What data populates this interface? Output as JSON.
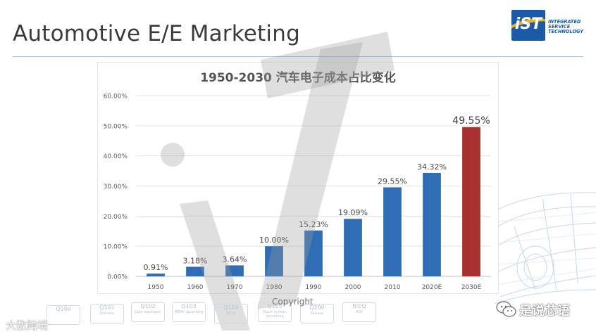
{
  "slide": {
    "title": "Automotive E/E Marketing"
  },
  "logo": {
    "mark": "iST",
    "lines": [
      "INTEGRATED",
      "SERVICE",
      "TECHNOLOGY"
    ]
  },
  "chart_data": {
    "type": "bar",
    "title": "1950-2030 汽车电子成本占比变化",
    "categories": [
      "1950",
      "1960",
      "1970",
      "1980",
      "1990",
      "2000",
      "2010",
      "2020E",
      "2030E"
    ],
    "values": [
      0.91,
      3.18,
      3.64,
      10.0,
      15.23,
      19.09,
      29.55,
      34.32,
      49.55
    ],
    "data_labels": [
      "0.91%",
      "3.18%",
      "3.64%",
      "10.00%",
      "15.23%",
      "19.09%",
      "29.55%",
      "34.32%",
      "49.55%"
    ],
    "ylim": [
      0,
      60
    ],
    "yticks": [
      0,
      10,
      20,
      30,
      40,
      50,
      60
    ],
    "ytick_labels": [
      "0.00%",
      "10.00%",
      "20.00%",
      "30.00%",
      "40.00%",
      "50.00%",
      "60.00%"
    ],
    "xlabel": "",
    "ylabel": "",
    "grid": true,
    "colors": {
      "default": "#2f6db5",
      "highlight": "#a8312f"
    },
    "highlight_index": 8
  },
  "footer": {
    "badges": [
      {
        "title": "Q100",
        "sub": ""
      },
      {
        "title": "Q101",
        "sub": "Discrete"
      },
      {
        "title": "Q102",
        "sub": "Opto electronic"
      },
      {
        "title": "Q103",
        "sub": "MEMs Upcoming"
      },
      {
        "title": "Q104",
        "sub": "MCM"
      },
      {
        "title": "Q105",
        "sub": "Touch system Upcoming"
      },
      {
        "title": "Q200",
        "sub": "Passive"
      },
      {
        "title": "IECQ",
        "sub": "AQP"
      }
    ],
    "copyright": "Copyright",
    "bigdata_label": "大数跨境",
    "wechat_label": "是说芯语"
  },
  "watermark": {
    "text": "iST"
  }
}
